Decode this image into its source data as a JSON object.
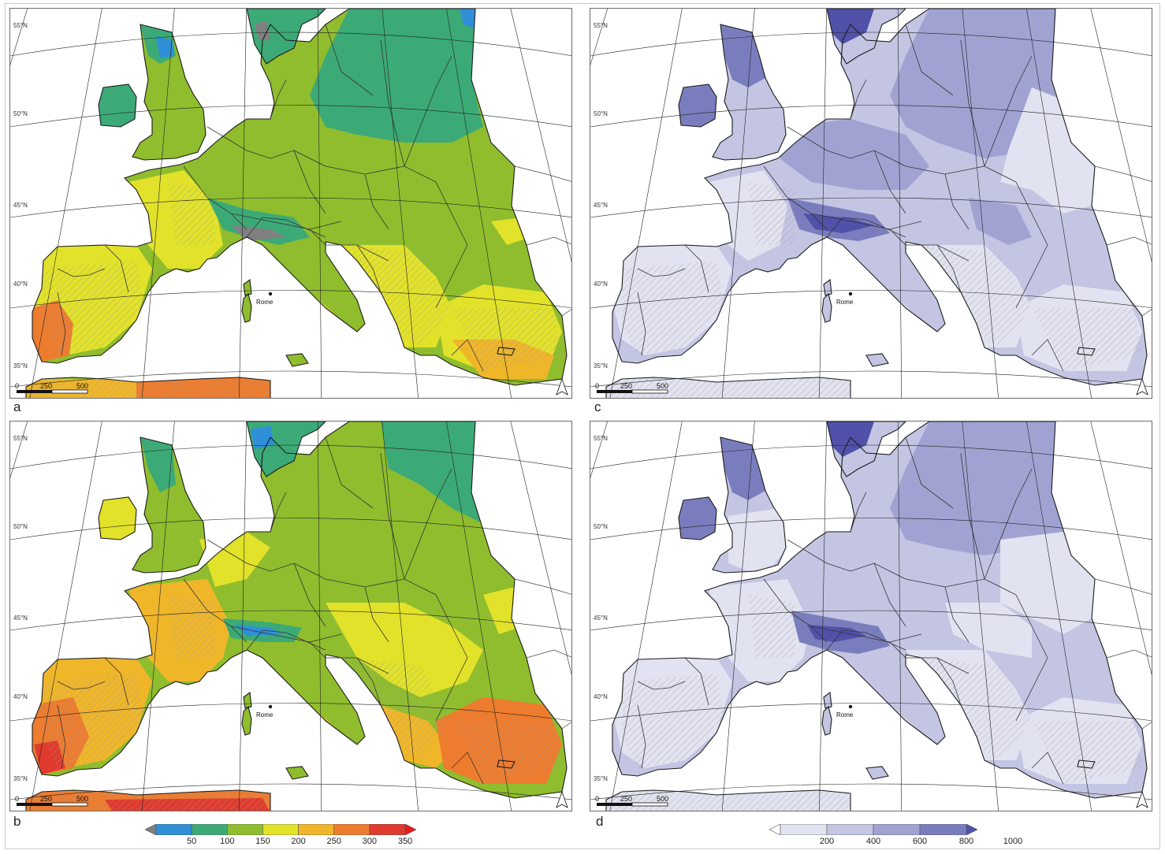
{
  "panels": [
    {
      "id": "a",
      "letter": "a",
      "scheme": "gy"
    },
    {
      "id": "c",
      "letter": "c",
      "scheme": "pu"
    },
    {
      "id": "b",
      "letter": "b",
      "scheme": "gy2"
    },
    {
      "id": "d",
      "letter": "d",
      "scheme": "pu2"
    }
  ],
  "map_labels": {
    "lat55": "55°N",
    "lat50": "50°N",
    "lat45": "45°N",
    "lat40": "40°N",
    "lat35": "35°N",
    "city": "Rome",
    "scale_0": "0",
    "scale_250": "250",
    "scale_500": "500"
  },
  "legend_left": {
    "ticks": [
      "50",
      "100",
      "150",
      "200",
      "250",
      "300",
      "350"
    ],
    "colors": [
      "#808080",
      "#2f8fd8",
      "#3caa77",
      "#8fbd2e",
      "#e2e22a",
      "#f0b62a",
      "#ee7c2e",
      "#e03a2e",
      "#e81b1b"
    ]
  },
  "legend_right": {
    "ticks": [
      "200",
      "400",
      "600",
      "800",
      "1000"
    ],
    "colors": [
      "#ffffff",
      "#e2e3f0",
      "#c3c5e3",
      "#a0a3d2",
      "#7a7dbd",
      "#4f52a8"
    ]
  },
  "colors": {
    "sea": "#ffffff",
    "grid": "#222222",
    "border": "#1b1b1b"
  }
}
